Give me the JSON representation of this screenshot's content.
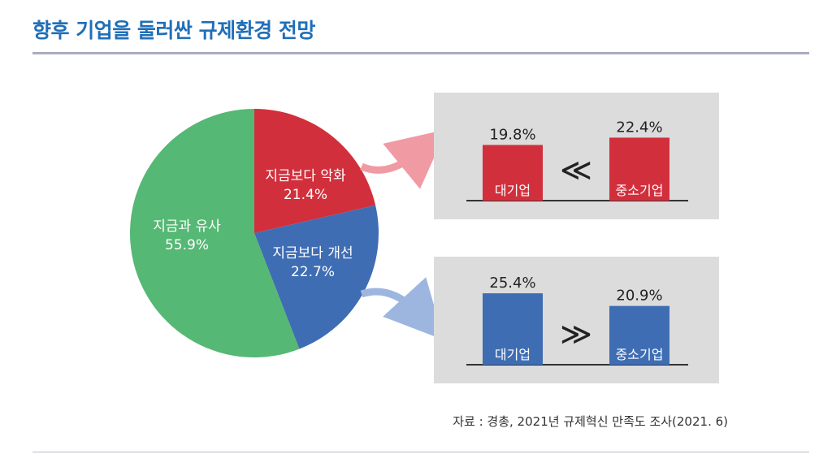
{
  "title": "향후 기업을 둘러싼 규제환경 전망",
  "source": "자료 : 경총, 2021년 규제혁신 만족도 조사(2021. 6)",
  "colors": {
    "title": "#1f6fb8",
    "worse": "#d22f3c",
    "better": "#3f6db3",
    "similar": "#55b874",
    "panel": "#dcdcdc",
    "arrow_red": "#f09aa4",
    "arrow_blue": "#9cb6df"
  },
  "chart_data": [
    {
      "type": "pie",
      "slices": [
        {
          "label": "지금보다 악화",
          "value": 21.4,
          "value_label": "21.4%",
          "color": "#d22f3c"
        },
        {
          "label": "지금보다 개선",
          "value": 22.7,
          "value_label": "22.7%",
          "color": "#3f6db3"
        },
        {
          "label": "지금과 유사",
          "value": 55.9,
          "value_label": "55.9%",
          "color": "#55b874"
        }
      ]
    },
    {
      "type": "bar",
      "categories": [
        "대기업",
        "중소기업"
      ],
      "values": [
        19.8,
        22.4
      ],
      "value_labels": [
        "19.8%",
        "22.4%"
      ],
      "comparison_symbol": "≪",
      "color": "#d22f3c"
    },
    {
      "type": "bar",
      "categories": [
        "대기업",
        "중소기업"
      ],
      "values": [
        25.4,
        20.9
      ],
      "value_labels": [
        "25.4%",
        "20.9%"
      ],
      "comparison_symbol": "≫",
      "color": "#3f6db3"
    }
  ]
}
